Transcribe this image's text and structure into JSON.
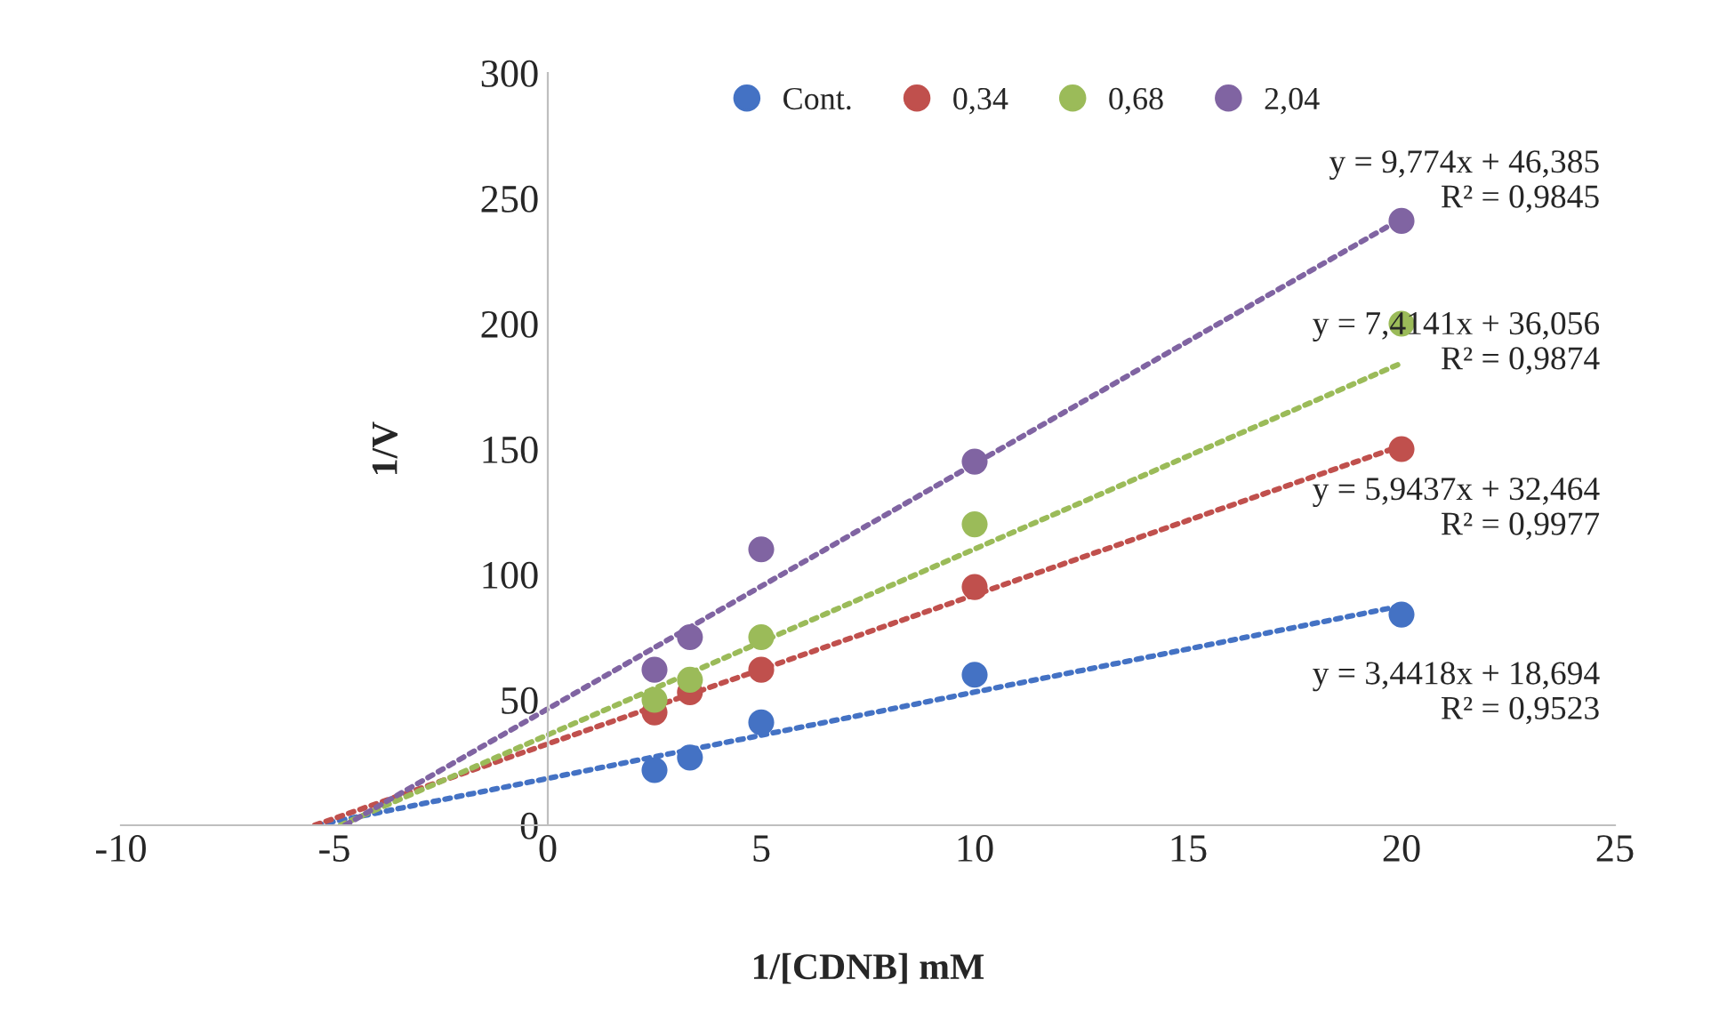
{
  "chart_data": {
    "type": "scatter",
    "xlabel": "1/[CDNB] mM",
    "ylabel": "1/V",
    "x": [
      2.5,
      3.33,
      5,
      10,
      20
    ],
    "xlim": [
      -10,
      25
    ],
    "xticks": [
      -10,
      -5,
      0,
      5,
      10,
      15,
      20,
      25
    ],
    "ylim": [
      0,
      300
    ],
    "yticks": [
      0,
      50,
      100,
      150,
      200,
      250,
      300
    ],
    "grid": false,
    "legend": "top",
    "marker": "circle",
    "series": [
      {
        "name": "Cont.",
        "color": "#4472c4",
        "values": [
          22,
          27,
          41,
          60,
          84
        ]
      },
      {
        "name": "0,34",
        "color": "#c0504d",
        "values": [
          45,
          53,
          62,
          95,
          150
        ]
      },
      {
        "name": "0,68",
        "color": "#9bbb59",
        "values": [
          50,
          58,
          75,
          120,
          200
        ]
      },
      {
        "name": "2,04",
        "color": "#8064a2",
        "values": [
          62,
          75,
          110,
          145,
          241
        ]
      },
      {
        "type": "line",
        "line_style": "dotted",
        "marker": "none",
        "color": "#4472c4",
        "x": [
          -5.43,
          20
        ],
        "values": [
          0,
          87.5
        ]
      },
      {
        "type": "line",
        "line_style": "dotted",
        "marker": "none",
        "color": "#c0504d",
        "x": [
          -5.46,
          20
        ],
        "values": [
          0,
          151.3
        ]
      },
      {
        "type": "line",
        "line_style": "dotted",
        "marker": "none",
        "color": "#9bbb59",
        "x": [
          -4.86,
          20
        ],
        "values": [
          0,
          184.3
        ]
      },
      {
        "type": "line",
        "line_style": "dotted",
        "marker": "none",
        "color": "#8064a2",
        "x": [
          -4.75,
          20
        ],
        "values": [
          0,
          241.9
        ]
      }
    ],
    "annotations": [
      "y = 3,4418x + 18,694\nR² = 0,9523",
      "y = 5,9437x + 32,464\nR² = 0,9977",
      "y = 7,4141x + 36,056\nR² = 0,9874",
      "y = 9,774x + 46,385\nR² = 0,9845"
    ]
  }
}
